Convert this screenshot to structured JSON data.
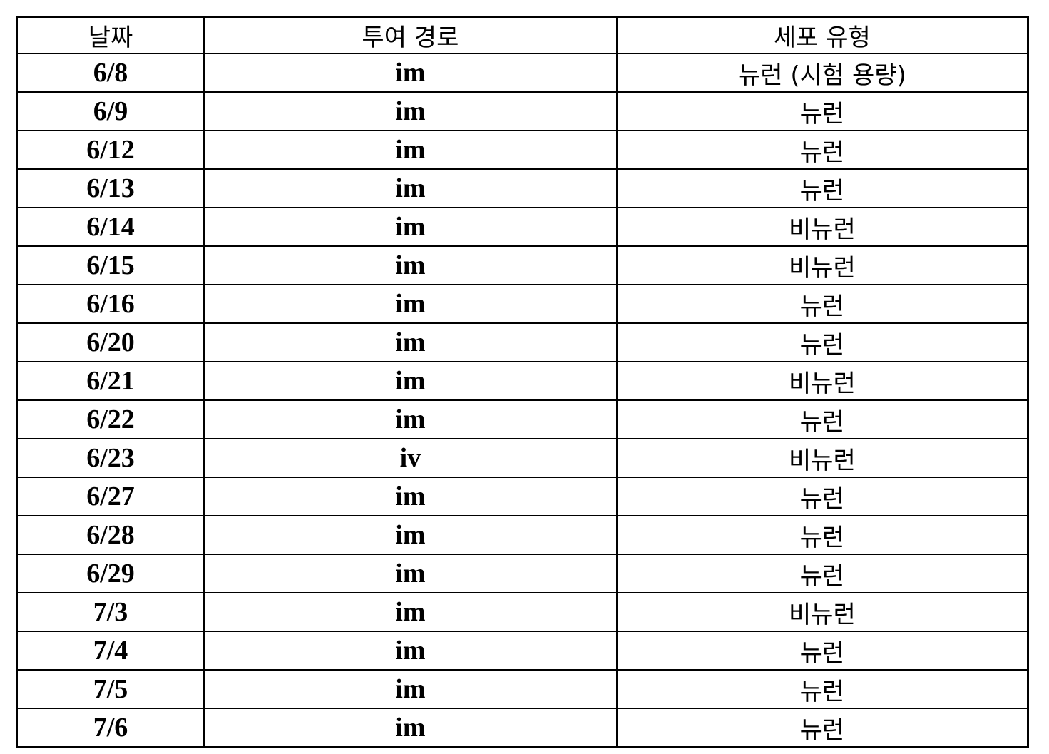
{
  "table": {
    "headers": [
      "날짜",
      "투여 경로",
      "세포 유형"
    ],
    "rows": [
      [
        "6/8",
        "im",
        "뉴런 (시험 용량)"
      ],
      [
        "6/9",
        "im",
        "뉴런"
      ],
      [
        "6/12",
        "im",
        "뉴런"
      ],
      [
        "6/13",
        "im",
        "뉴런"
      ],
      [
        "6/14",
        "im",
        "비뉴런"
      ],
      [
        "6/15",
        "im",
        "비뉴런"
      ],
      [
        "6/16",
        "im",
        "뉴런"
      ],
      [
        "6/20",
        "im",
        "뉴런"
      ],
      [
        "6/21",
        "im",
        "비뉴런"
      ],
      [
        "6/22",
        "im",
        "뉴런"
      ],
      [
        "6/23",
        "iv",
        "비뉴런"
      ],
      [
        "6/27",
        "im",
        "뉴런"
      ],
      [
        "6/28",
        "im",
        "뉴런"
      ],
      [
        "6/29",
        "im",
        "뉴런"
      ],
      [
        "7/3",
        "im",
        "비뉴런"
      ],
      [
        "7/4",
        "im",
        "뉴런"
      ],
      [
        "7/5",
        "im",
        "뉴런"
      ],
      [
        "7/6",
        "im",
        "뉴런"
      ]
    ]
  }
}
